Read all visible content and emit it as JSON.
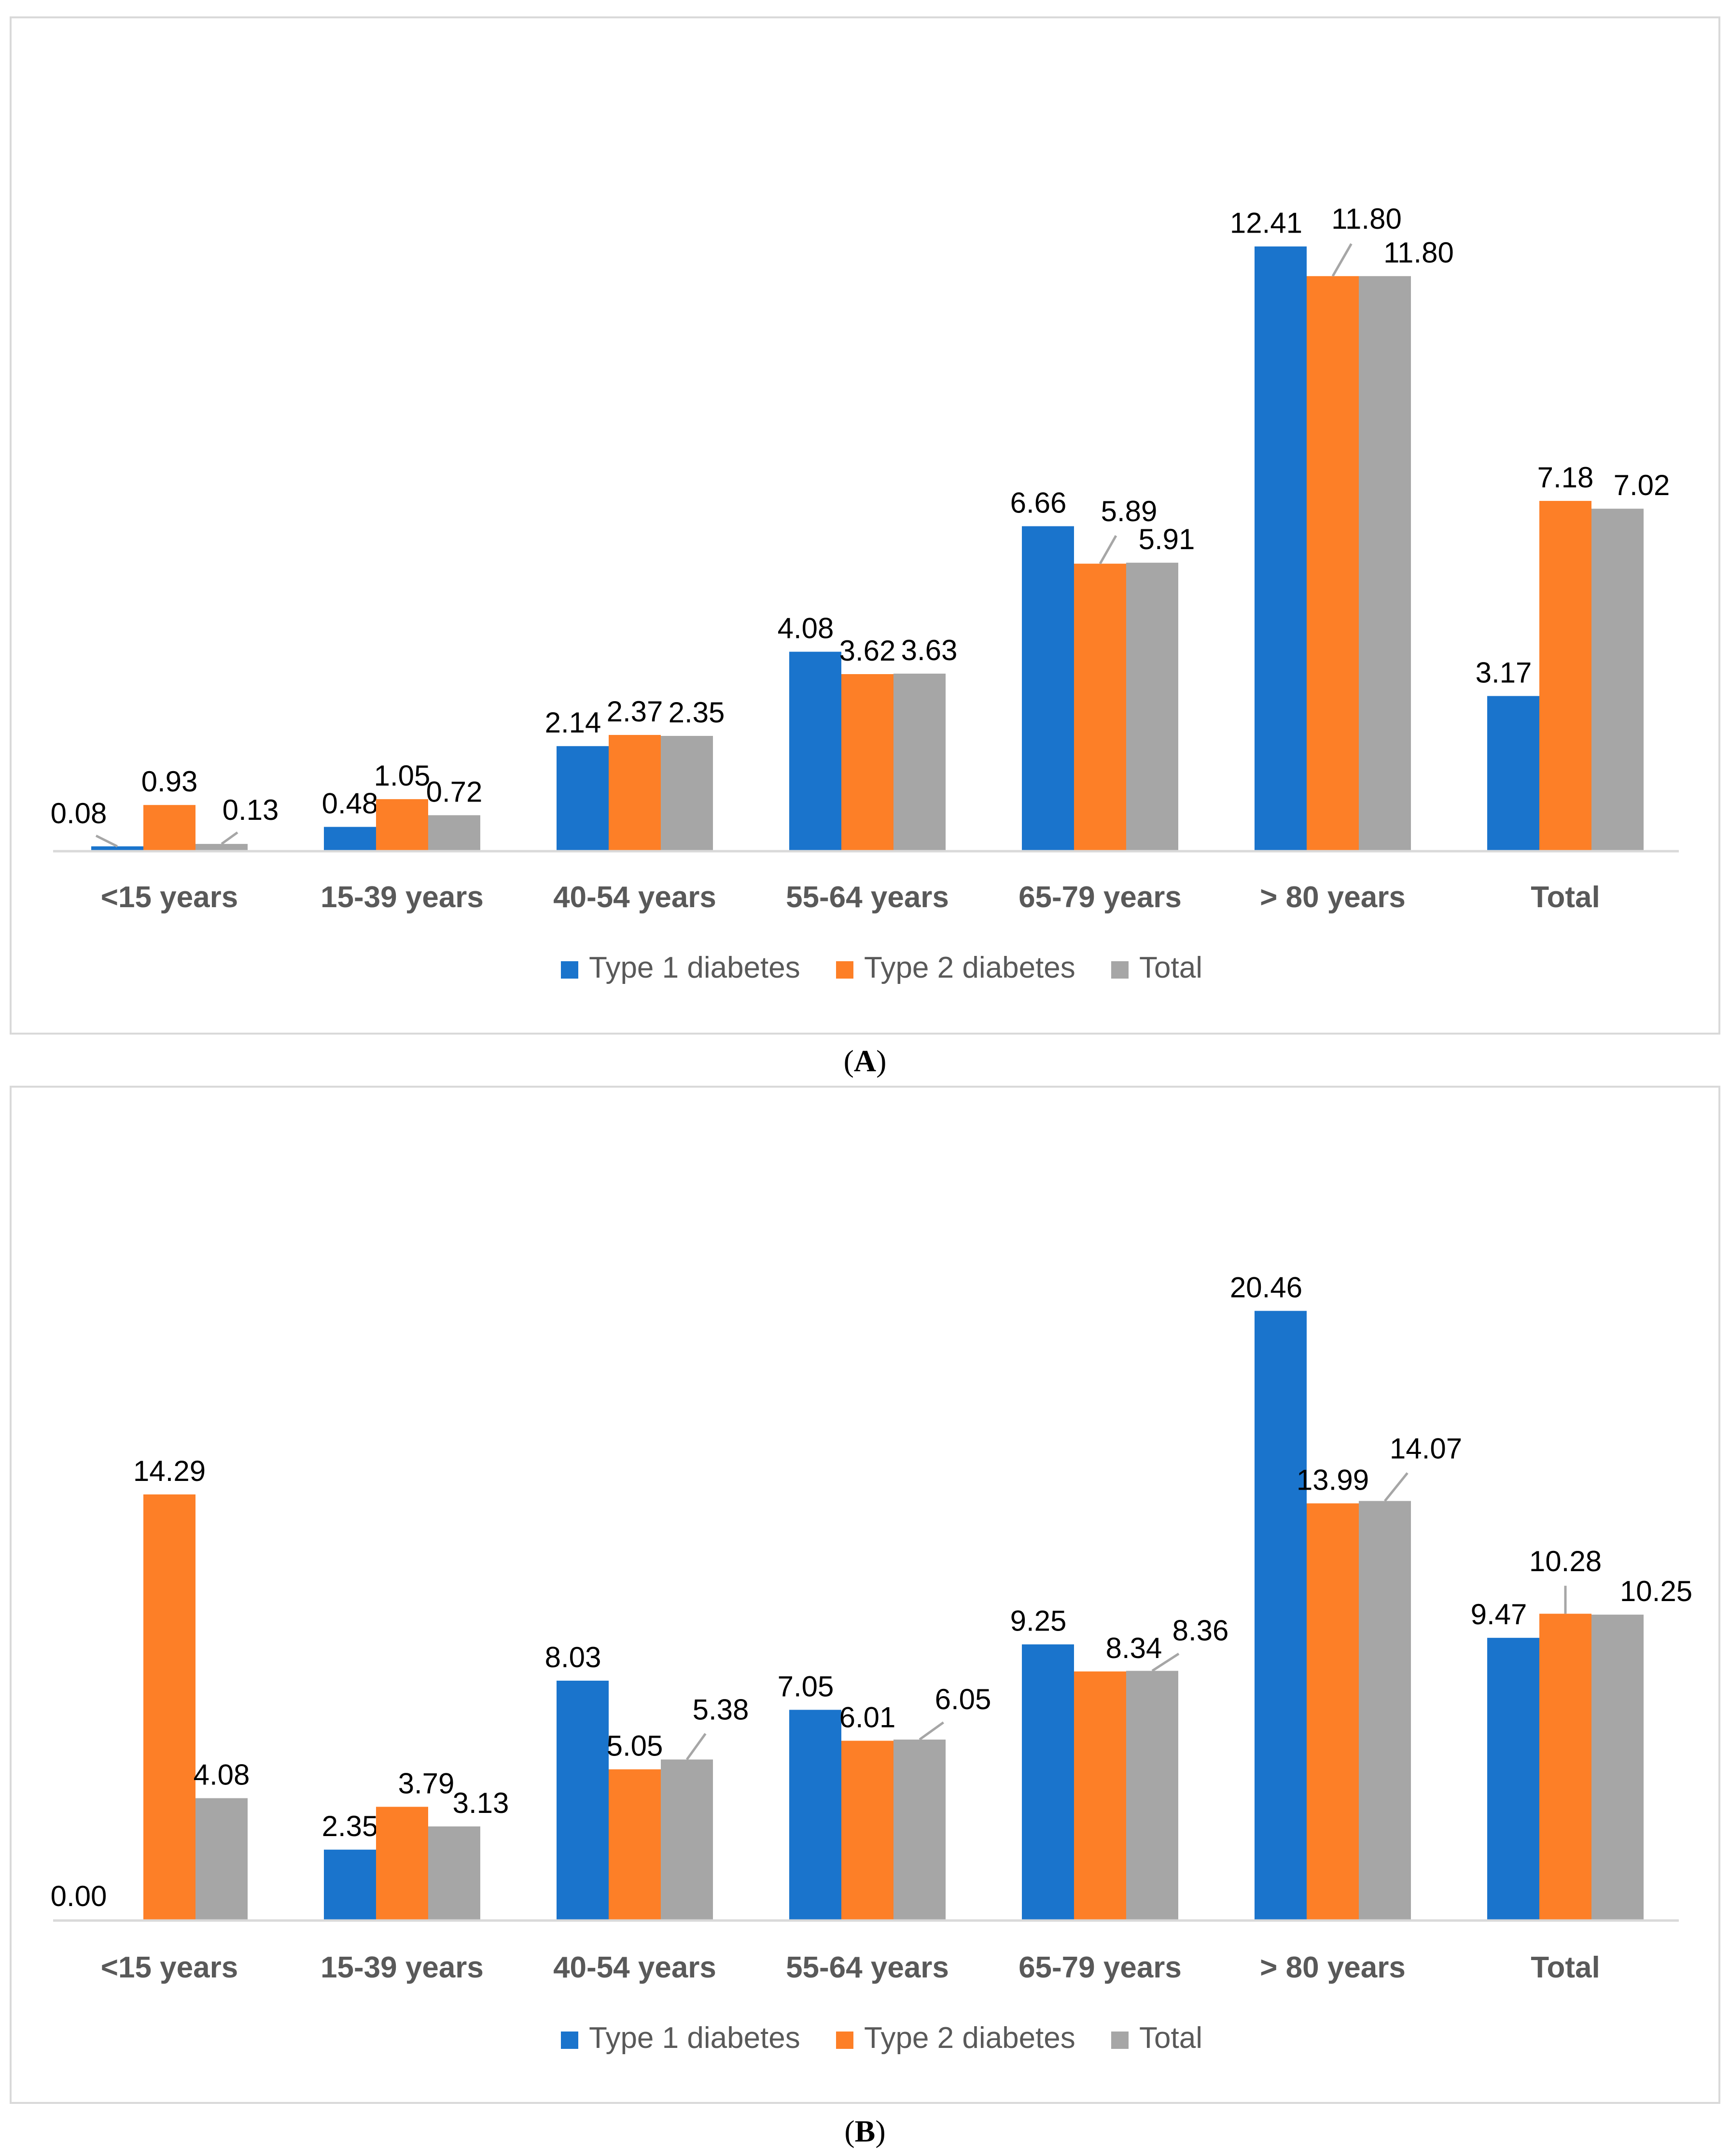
{
  "chart_data": [
    {
      "panel_label": "A",
      "type": "bar",
      "categories": [
        "<15 years",
        "15-39 years",
        "40-54 years",
        "55-64 years",
        "65-79 years",
        "> 80 years",
        "Total"
      ],
      "series": [
        {
          "name": "Type 1 diabetes",
          "values": [
            0.08,
            0.48,
            2.14,
            4.08,
            6.66,
            12.41,
            3.17
          ],
          "labels": [
            "0.08",
            "0.48",
            "2.14",
            "4.08",
            "6.66",
            "12.41",
            "3.17"
          ]
        },
        {
          "name": "Type 2 diabetes",
          "values": [
            0.93,
            1.05,
            2.37,
            3.62,
            5.89,
            11.8,
            7.18
          ],
          "labels": [
            "0.93",
            "1.05",
            "2.37",
            "3.62",
            "5.89",
            "11.80",
            "7.18"
          ]
        },
        {
          "name": "Total",
          "values": [
            0.13,
            0.72,
            2.35,
            3.63,
            5.91,
            11.8,
            7.02
          ],
          "labels": [
            "0.13",
            "0.72",
            "2.35",
            "3.63",
            "5.91",
            "11.80",
            "7.02"
          ]
        }
      ],
      "ylim": [
        0,
        14.5
      ],
      "title": "",
      "xlabel": "",
      "ylabel": "",
      "legend": "bottom-center",
      "grid": false
    },
    {
      "panel_label": "B",
      "type": "bar",
      "categories": [
        "<15 years",
        "15-39 years",
        "40-54 years",
        "55-64 years",
        "65-79 years",
        "> 80 years",
        "Total"
      ],
      "series": [
        {
          "name": "Type 1 diabetes",
          "values": [
            0.0,
            2.35,
            8.03,
            7.05,
            9.25,
            20.46,
            9.47
          ],
          "labels": [
            "0.00",
            "2.35",
            "8.03",
            "7.05",
            "9.25",
            "20.46",
            "9.47"
          ]
        },
        {
          "name": "Type 2 diabetes",
          "values": [
            14.29,
            3.79,
            5.05,
            6.01,
            8.34,
            13.99,
            10.28
          ],
          "labels": [
            "14.29",
            "3.79",
            "5.05",
            "6.01",
            "8.34",
            "13.99",
            "10.28"
          ]
        },
        {
          "name": "Total",
          "values": [
            4.08,
            3.13,
            5.38,
            6.05,
            8.36,
            14.07,
            10.25
          ],
          "labels": [
            "4.08",
            "3.13",
            "5.38",
            "6.05",
            "8.36",
            "14.07",
            "10.25"
          ]
        }
      ],
      "ylim": [
        0,
        23
      ],
      "title": "",
      "xlabel": "",
      "ylabel": "",
      "legend": "bottom-center",
      "grid": false
    }
  ],
  "colors": {
    "type1": "#1a74cc",
    "type2": "#fd7f27",
    "total": "#a6a6a6",
    "axis": "#d9d9d9",
    "category_text": "#595959",
    "legend_text": "#595959",
    "label_text": "#000000",
    "leader": "#a6a6a6"
  },
  "captions": {
    "a_open": "(",
    "a_letter": "A",
    "a_close": ")",
    "b_open": "(",
    "b_letter": "B",
    "b_close": ")"
  }
}
